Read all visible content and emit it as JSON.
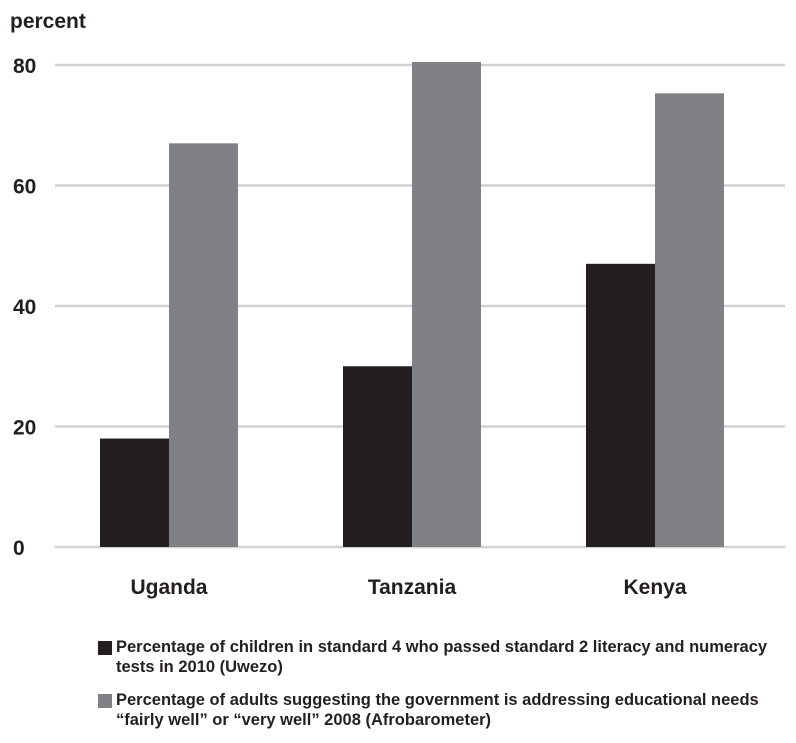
{
  "chart_data": {
    "type": "bar",
    "ylabel": "percent",
    "xlabel": "",
    "ylim": [
      0,
      80
    ],
    "yticks": [
      0,
      20,
      40,
      60,
      80
    ],
    "categories": [
      "Uganda",
      "Tanzania",
      "Kenya"
    ],
    "grid": true,
    "legend_position": "bottom",
    "series": [
      {
        "name": "Percentage of children in standard 4 who passed standard 2 literacy and numeracy tests in 2010 (Uwezo)",
        "color": "#231f20",
        "values": [
          18,
          30,
          47
        ]
      },
      {
        "name": "Percentage of adults suggesting the government is addressing educational needs “fairly well” or “very well” 2008 (Afrobarometer)",
        "color": "#808184",
        "values": [
          67,
          80.5,
          75.3
        ]
      }
    ]
  }
}
